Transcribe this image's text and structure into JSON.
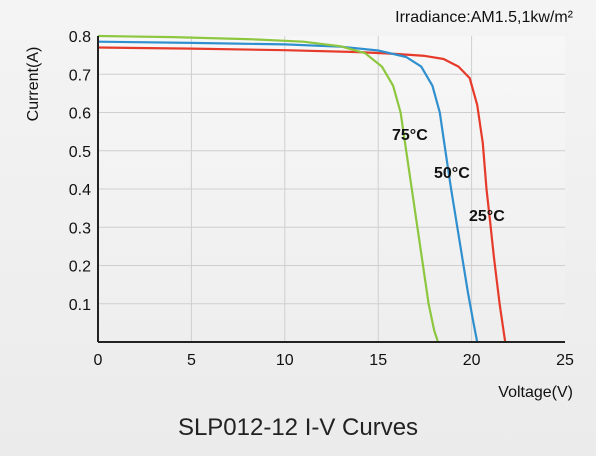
{
  "chart_data": {
    "type": "line",
    "title": "SLP012-12 I-V Curves",
    "annotation": "Irradiance:AM1.5,1kw/m²",
    "xlabel": "Voltage(V)",
    "ylabel": "Current(A)",
    "xlim": [
      0,
      25
    ],
    "ylim": [
      0,
      0.8
    ],
    "xticks": [
      "0",
      "5",
      "10",
      "15",
      "20",
      "25"
    ],
    "yticks": [
      "0.1",
      "0.2",
      "0.3",
      "0.4",
      "0.5",
      "0.6",
      "0.7",
      "0.8"
    ],
    "grid": true,
    "series": [
      {
        "name": "25°C",
        "color": "#e63a2a",
        "x": [
          0,
          5,
          10,
          14,
          16,
          17.5,
          18.5,
          19.3,
          19.9,
          20.3,
          20.6,
          20.8,
          21.0,
          21.2,
          21.5,
          21.8
        ],
        "y": [
          0.77,
          0.767,
          0.763,
          0.758,
          0.753,
          0.748,
          0.74,
          0.72,
          0.69,
          0.62,
          0.52,
          0.4,
          0.31,
          0.22,
          0.1,
          0
        ]
      },
      {
        "name": "50°C",
        "color": "#2f8fcf",
        "x": [
          0,
          5,
          10,
          13,
          15,
          16.5,
          17.3,
          17.9,
          18.3,
          18.6,
          18.9,
          19.2,
          19.5,
          19.8,
          20.1,
          20.3
        ],
        "y": [
          0.785,
          0.782,
          0.778,
          0.772,
          0.762,
          0.745,
          0.72,
          0.67,
          0.6,
          0.5,
          0.4,
          0.31,
          0.22,
          0.13,
          0.05,
          0
        ]
      },
      {
        "name": "75°C",
        "color": "#8dc63f",
        "x": [
          0,
          4,
          8,
          11,
          13,
          14.3,
          15.2,
          15.8,
          16.2,
          16.5,
          16.8,
          17.1,
          17.4,
          17.7,
          18.0,
          18.2
        ],
        "y": [
          0.8,
          0.797,
          0.792,
          0.785,
          0.773,
          0.755,
          0.72,
          0.67,
          0.6,
          0.5,
          0.4,
          0.3,
          0.2,
          0.1,
          0.03,
          0
        ]
      }
    ]
  }
}
